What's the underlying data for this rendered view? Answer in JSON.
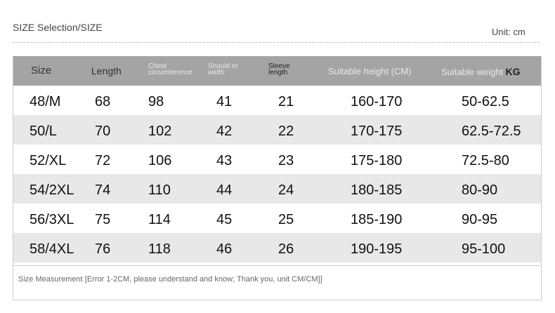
{
  "title": "SIZE Selection/SIZE",
  "unit": "Unit: cm",
  "headers": [
    "Size",
    "Length",
    "Chest circumference",
    "Should er width",
    "Sleeve length",
    "Suitable height (CM)",
    "Suitable weight",
    "KG"
  ],
  "rows": [
    [
      "48/M",
      "68",
      "98",
      "41",
      "21",
      "160-170",
      "50-62.5"
    ],
    [
      "50/L",
      "70",
      "102",
      "42",
      "22",
      "170-175",
      "62.5-72.5"
    ],
    [
      "52/XL",
      "72",
      "106",
      "43",
      "23",
      "175-180",
      "72.5-80"
    ],
    [
      "54/2XL",
      "74",
      "110",
      "44",
      "24",
      "180-185",
      "80-90"
    ],
    [
      "56/3XL",
      "75",
      "114",
      "45",
      "25",
      "185-190",
      "90-95"
    ],
    [
      "58/4XL",
      "76",
      "118",
      "46",
      "26",
      "190-195",
      "95-100"
    ]
  ],
  "note": "Size Measurement [Error 1-2CM, please understand and know; Thank you, unit CM/CM]]",
  "colors": {
    "header_bg": "#a4a4a4",
    "alt_row": "#e8e8e8"
  }
}
